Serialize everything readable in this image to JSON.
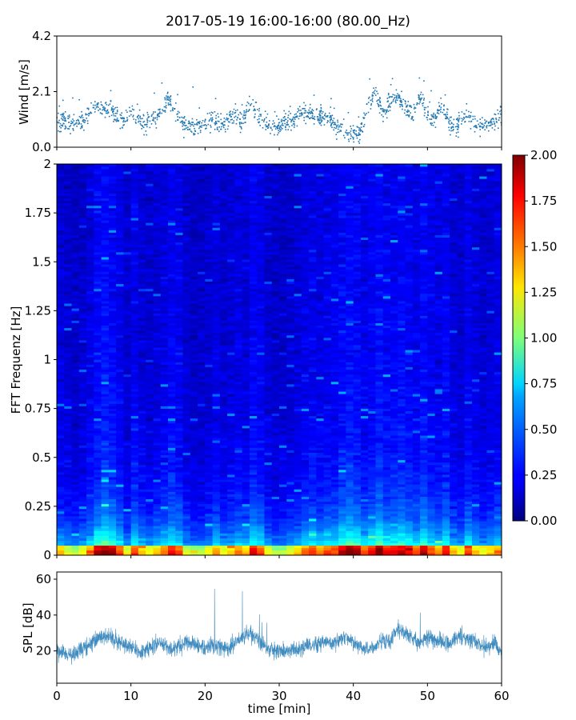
{
  "figure": {
    "title": "2017-05-19 16:00-16:00 (80.00_Hz)"
  },
  "chart_data": [
    {
      "type": "scatter",
      "panel": "wind",
      "ylabel": "Wind [m/s]",
      "ylim": [
        0.0,
        4.2
      ],
      "yticks": [
        0.0,
        2.1,
        4.2
      ],
      "ytick_labels": [
        "0.0",
        "2.1",
        "4.2"
      ],
      "xlim": [
        0,
        60
      ],
      "xticks": [
        0,
        10,
        20,
        30,
        40,
        50,
        60
      ],
      "color": "#1f77b4",
      "series": [
        {
          "x": [
            0,
            1,
            2,
            3,
            4,
            5,
            6,
            7,
            8,
            9,
            10,
            11,
            12,
            13,
            14,
            15,
            16,
            17,
            18,
            19,
            20,
            21,
            22,
            23,
            24,
            25,
            26,
            27,
            28,
            29,
            30,
            31,
            32,
            33,
            34,
            35,
            36,
            37,
            38,
            39,
            40,
            41,
            42,
            43,
            44,
            45,
            46,
            47,
            48,
            49,
            50,
            51,
            52,
            53,
            54,
            55,
            56,
            57,
            58,
            59,
            60
          ],
          "y": [
            0.9,
            1.0,
            0.8,
            0.9,
            1.1,
            1.6,
            1.5,
            1.4,
            1.2,
            0.9,
            1.5,
            1.0,
            0.9,
            1.1,
            1.3,
            1.8,
            1.4,
            0.9,
            0.8,
            0.8,
            0.9,
            1.1,
            0.8,
            1.0,
            1.2,
            0.9,
            1.6,
            1.3,
            0.9,
            0.8,
            0.8,
            0.9,
            1.0,
            1.2,
            1.3,
            1.1,
            1.2,
            1.0,
            0.7,
            0.6,
            0.5,
            0.6,
            1.6,
            2.0,
            1.3,
            1.7,
            1.9,
            1.5,
            1.2,
            2.0,
            1.3,
            1.1,
            1.6,
            0.9,
            0.8,
            1.3,
            1.0,
            0.8,
            0.9,
            1.0,
            1.2
          ]
        }
      ]
    },
    {
      "type": "heatmap",
      "panel": "spectrogram",
      "ylabel": "FFT Frequenz [Hz]",
      "ylim": [
        0,
        2
      ],
      "yticks": [
        0,
        0.25,
        0.5,
        0.75,
        1,
        1.25,
        1.5,
        1.75,
        2
      ],
      "ytick_labels": [
        "0",
        "0.25",
        "0.5",
        "0.75",
        "1",
        "1.25",
        "1.5",
        "1.75",
        "2"
      ],
      "xlim": [
        0,
        60
      ],
      "colormap": "jet",
      "colorbar": {
        "range": [
          0.0,
          2.0
        ],
        "ticks": [
          0.0,
          0.25,
          0.5,
          0.75,
          1.0,
          1.25,
          1.5,
          1.75,
          2.0
        ],
        "tick_labels": [
          "0.00",
          "0.25",
          "0.50",
          "0.75",
          "1.00",
          "1.25",
          "1.50",
          "1.75",
          "2.00"
        ]
      }
    },
    {
      "type": "line",
      "panel": "spl",
      "ylabel": "SPL [dB]",
      "xlabel": "time [min]",
      "ylim": [
        2,
        64
      ],
      "yticks": [
        20,
        40,
        60
      ],
      "ytick_labels": [
        "20",
        "40",
        "60"
      ],
      "xlim": [
        0,
        60
      ],
      "xticks": [
        0,
        10,
        20,
        30,
        40,
        50,
        60
      ],
      "xtick_labels": [
        "0",
        "10",
        "20",
        "30",
        "40",
        "50",
        "60"
      ],
      "color": "#1f77b4",
      "series": [
        {
          "x": [
            0,
            1,
            2,
            3,
            4,
            5,
            6,
            7,
            8,
            9,
            10,
            11,
            12,
            13,
            14,
            15,
            16,
            17,
            18,
            19,
            20,
            21,
            22,
            23,
            24,
            25,
            26,
            27,
            28,
            29,
            30,
            31,
            32,
            33,
            34,
            35,
            36,
            37,
            38,
            39,
            40,
            41,
            42,
            43,
            44,
            45,
            46,
            47,
            48,
            49,
            50,
            51,
            52,
            53,
            54,
            55,
            56,
            57,
            58,
            59,
            60
          ],
          "y": [
            20,
            19,
            18,
            21,
            23,
            25,
            27,
            28,
            26,
            24,
            22,
            20,
            20,
            23,
            25,
            22,
            21,
            24,
            25,
            23,
            21,
            24,
            22,
            21,
            24,
            27,
            30,
            27,
            23,
            21,
            20,
            20,
            20,
            21,
            24,
            23,
            25,
            24,
            26,
            28,
            25,
            22,
            21,
            23,
            25,
            26,
            32,
            30,
            27,
            24,
            28,
            26,
            25,
            24,
            27,
            28,
            26,
            24,
            22,
            25,
            19
          ]
        }
      ]
    }
  ]
}
